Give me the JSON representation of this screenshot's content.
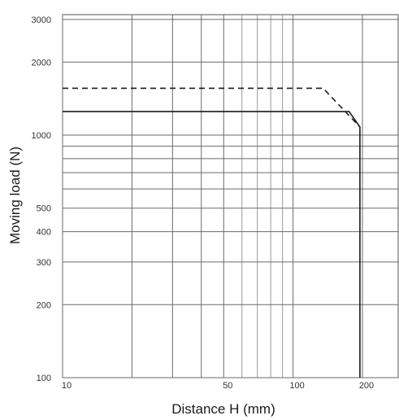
{
  "chart_data": {
    "type": "line",
    "title": "",
    "xlabel": "Distance H (mm)",
    "ylabel": "Moving load (N)",
    "xscale": "log",
    "yscale": "log",
    "xlim": [
      10,
      270
    ],
    "ylim": [
      100,
      3000
    ],
    "x_ticks": [
      {
        "value": 10,
        "label": "10"
      },
      {
        "value": 50,
        "label": "50"
      },
      {
        "value": 100,
        "label": "100"
      },
      {
        "value": 200,
        "label": "200"
      }
    ],
    "y_ticks": [
      {
        "value": 100,
        "label": "100"
      },
      {
        "value": 200,
        "label": "200"
      },
      {
        "value": 300,
        "label": "300"
      },
      {
        "value": 400,
        "label": "400"
      },
      {
        "value": 500,
        "label": "500"
      },
      {
        "value": 1000,
        "label": "1000"
      },
      {
        "value": 2000,
        "label": "2000"
      },
      {
        "value": 3000,
        "label": "3000"
      }
    ],
    "x_gridlines": [
      10,
      20,
      30,
      40,
      50,
      60,
      70,
      80,
      90,
      100,
      200
    ],
    "y_gridlines": [
      100,
      200,
      300,
      400,
      500,
      600,
      700,
      800,
      900,
      1000,
      2000,
      3000
    ],
    "grid": true,
    "series": [
      {
        "style": "solid",
        "color": "#1a1a1a",
        "x": [
          10,
          175,
          195,
          195
        ],
        "y": [
          1250,
          1250,
          1080,
          100
        ]
      },
      {
        "style": "dashed",
        "color": "#1a1a1a",
        "x": [
          10,
          135,
          195
        ],
        "y": [
          1560,
          1560,
          1080
        ]
      }
    ]
  }
}
